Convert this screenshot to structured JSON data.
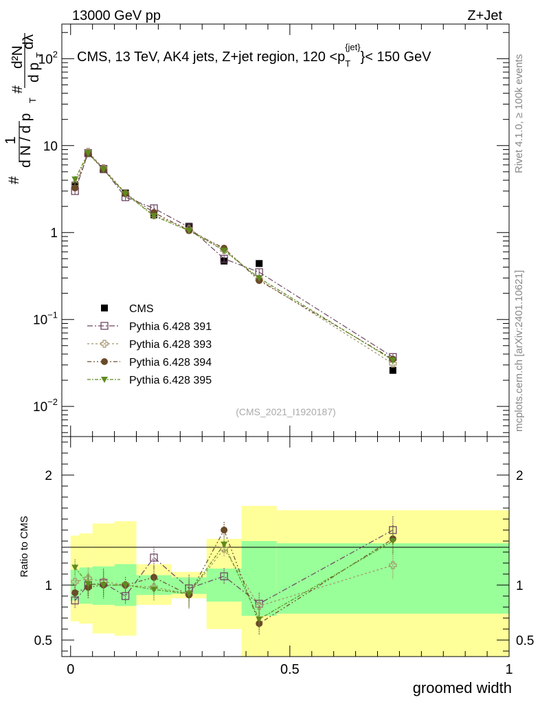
{
  "header": {
    "energy_label": "13000 GeV pp",
    "process_label": "Z+Jet"
  },
  "side_labels": {
    "rivet": "Rivet 4.1.0, ≥ 100k events",
    "mcplots": "mcplots.cern.ch [arXiv:2401.10621]"
  },
  "colors": {
    "cms": "#000000",
    "p391": "#6b4561",
    "p393": "#a29368",
    "p394": "#6b4a2a",
    "p395": "#5e8c1e",
    "band_inner": "#99ff99",
    "band_outer": "#ffff99"
  },
  "chart_data": [
    {
      "type": "scatter",
      "title": "CMS, 13 TeV, AK4 jets, Z+jet region, 120 <p_T^{jet}< 150 GeV",
      "title_parts": {
        "main": "CMS, 13 TeV, AK4 jets, Z+jet region, 120 <p",
        "sub": "T",
        "sup": "{jet}",
        "tail": "}< 150 GeV"
      },
      "watermark": "(CMS_2021_I1920187)",
      "ylabel": "1/N dN/dp_T d²N/dp_T dλ",
      "ylabel_parts": {
        "hash1": "#",
        "one": "1",
        "dn": "d N / d p",
        "t1": "T",
        "hash2": "#",
        "d2n": "d²N",
        "dp": "d p",
        "t2": "T",
        "dl": "dλ"
      },
      "yscale": "log",
      "ylim": [
        0.0045,
        250
      ],
      "xlim": [
        -0.02,
        1.0
      ],
      "yticks": [
        {
          "value": 0.01,
          "base": "10",
          "exp": "−2"
        },
        {
          "value": 0.1,
          "base": "10",
          "exp": "−1"
        },
        {
          "value": 1,
          "base": "1",
          "exp": ""
        },
        {
          "value": 10,
          "base": "10",
          "exp": ""
        },
        {
          "value": 100,
          "base": "10",
          "exp": "2"
        }
      ],
      "legend": [
        "CMS",
        "Pythia 6.428 391",
        "Pythia 6.428 393",
        "Pythia 6.428 394",
        "Pythia 6.428 395"
      ],
      "legend_position": "lower-left",
      "x": [
        0.01,
        0.04,
        0.075,
        0.125,
        0.19,
        0.27,
        0.35,
        0.43,
        0.735
      ],
      "series": [
        {
          "name": "CMS",
          "values": [
            3.5,
            8.1,
            5.3,
            2.85,
            1.6,
            1.18,
            0.47,
            0.44,
            0.026
          ]
        },
        {
          "name": "Pythia 6.428 391",
          "values": [
            3.0,
            8.2,
            5.4,
            2.55,
            1.9,
            1.15,
            0.5,
            0.35,
            0.037
          ]
        },
        {
          "name": "Pythia 6.428 393",
          "values": [
            3.6,
            8.5,
            5.5,
            2.85,
            1.58,
            1.1,
            0.63,
            0.29,
            0.031
          ]
        },
        {
          "name": "Pythia 6.428 394",
          "values": [
            3.25,
            8.1,
            5.3,
            2.8,
            1.7,
            1.05,
            0.66,
            0.28,
            0.035
          ]
        },
        {
          "name": "Pythia 6.428 395",
          "values": [
            4.1,
            8.2,
            5.3,
            2.8,
            1.55,
            1.05,
            0.62,
            0.3,
            0.034
          ]
        }
      ]
    },
    {
      "type": "scatter",
      "ylabel": "Ratio to CMS",
      "xlabel": "groomed width",
      "xlim": [
        -0.02,
        1.0
      ],
      "ylim": [
        0.35,
        2.35
      ],
      "yticks_left": [
        0.5,
        1,
        2
      ],
      "ytick_labels": [
        "0.5",
        "1",
        "2"
      ],
      "xticks": [
        0,
        0.5,
        1
      ],
      "xtick_labels": [
        "0",
        "0.5",
        "1"
      ],
      "bands": {
        "edges": [
          0,
          0.02,
          0.05,
          0.1,
          0.15,
          0.23,
          0.31,
          0.39,
          0.47,
          1.0
        ],
        "inner_lo": [
          0.86,
          0.83,
          0.82,
          0.81,
          0.91,
          0.92,
          0.85,
          0.72,
          0.74
        ],
        "inner_hi": [
          1.14,
          1.16,
          1.17,
          1.19,
          1.09,
          1.07,
          1.15,
          1.4,
          1.38
        ],
        "outer_lo": [
          0.67,
          0.65,
          0.56,
          0.54,
          0.82,
          0.88,
          0.6,
          0.3,
          0.3
        ],
        "outer_hi": [
          1.45,
          1.47,
          1.56,
          1.58,
          1.19,
          1.12,
          1.42,
          1.72,
          1.68
        ]
      },
      "x": [
        0.01,
        0.04,
        0.075,
        0.125,
        0.19,
        0.27,
        0.35,
        0.43,
        0.735
      ],
      "series": [
        {
          "name": "Pythia 6.428 391",
          "values": [
            0.86,
            1.0,
            1.02,
            0.9,
            1.25,
            0.97,
            1.08,
            0.83,
            1.5
          ]
        },
        {
          "name": "Pythia 6.428 393",
          "values": [
            1.03,
            1.06,
            1.03,
            1.0,
            0.98,
            0.92,
            1.33,
            0.81,
            1.18
          ]
        },
        {
          "name": "Pythia 6.428 394",
          "values": [
            0.93,
            0.98,
            1.0,
            1.0,
            1.07,
            0.91,
            1.5,
            0.65,
            1.42
          ]
        },
        {
          "name": "Pythia 6.428 395",
          "values": [
            1.16,
            1.01,
            1.0,
            1.0,
            0.96,
            0.92,
            1.37,
            0.69,
            1.4
          ]
        }
      ]
    }
  ]
}
